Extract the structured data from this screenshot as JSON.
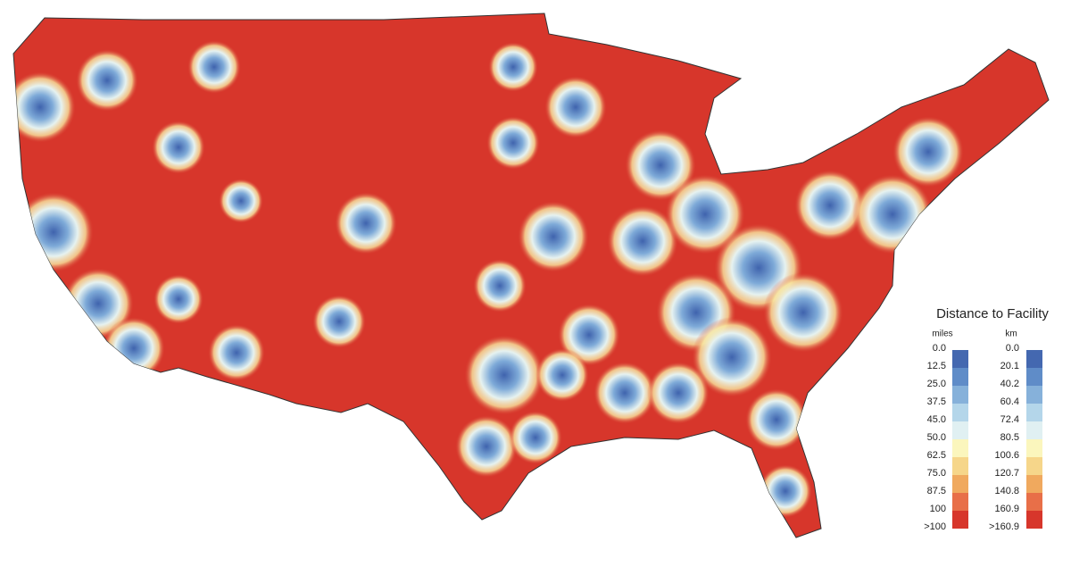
{
  "legend": {
    "title": "Distance to Facility",
    "miles_header": "miles",
    "km_header": "km",
    "miles": [
      "0.0",
      "12.5",
      "25.0",
      "37.5",
      "45.0",
      "50.0",
      "62.5",
      "75.0",
      "87.5",
      "100",
      ">100"
    ],
    "km": [
      "0.0",
      "20.1",
      "40.2",
      "60.4",
      "72.4",
      "80.5",
      "100.6",
      "120.7",
      "140.8",
      "160.9",
      ">160.9"
    ],
    "colors": [
      "#4468b0",
      "#5f8cc8",
      "#86b1da",
      "#b4d6ea",
      "#e0f0f2",
      "#fbf6bd",
      "#f6d68a",
      "#f0a95e",
      "#e86f48",
      "#d7362b"
    ]
  }
}
